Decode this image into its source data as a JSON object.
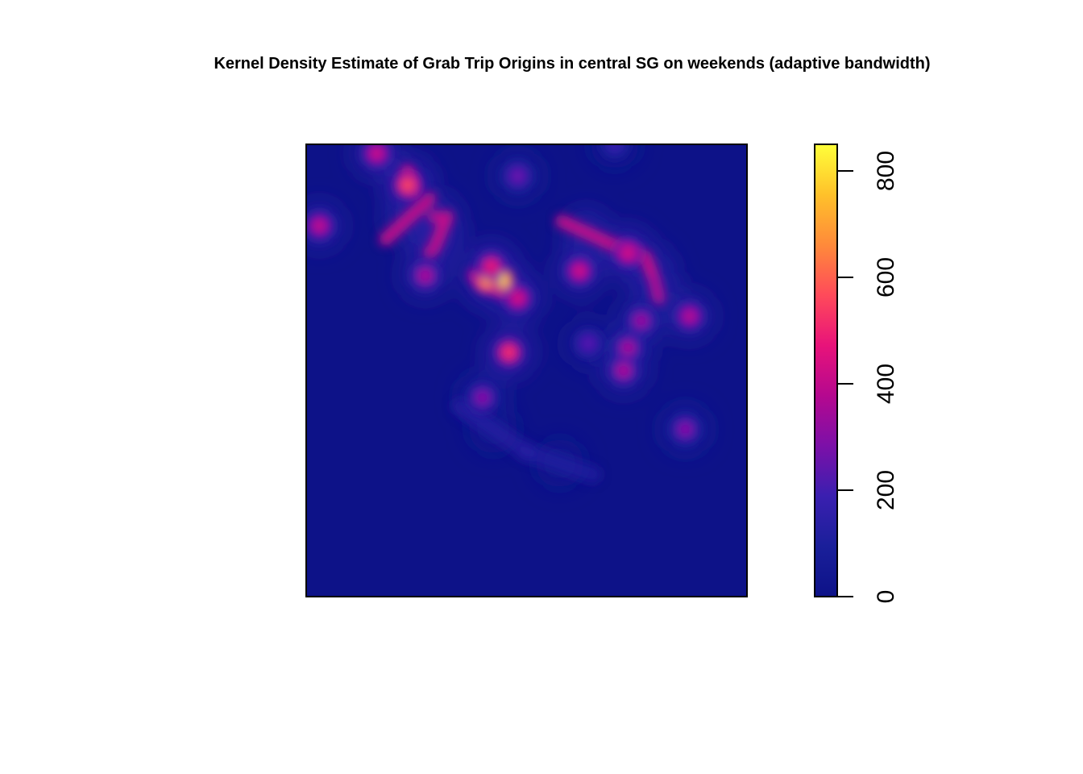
{
  "chart_data": {
    "type": "heatmap",
    "title": "Kernel Density Estimate of Grab Trip Origins in central SG on weekends (adaptive bandwidth)",
    "xlabel": "",
    "ylabel": "",
    "axes": "none",
    "grid": false,
    "colorbar": {
      "position": "right",
      "orientation": "vertical",
      "range": [
        0,
        850
      ],
      "ticks": [
        "0",
        "200",
        "400",
        "600",
        "800"
      ],
      "tick_values": [
        0,
        200,
        400,
        600,
        800
      ],
      "colors": [
        "#0d1288",
        "#1a1f9a",
        "#3a1fb0",
        "#7c10a8",
        "#b5088f",
        "#e8137a",
        "#ff4a5a",
        "#ff8a3a",
        "#ffc12a",
        "#ffff3a"
      ]
    },
    "hotspots": [
      {
        "x": 0.44,
        "y": 0.3,
        "value": 850
      },
      {
        "x": 0.41,
        "y": 0.3,
        "value": 700
      },
      {
        "x": 0.42,
        "y": 0.27,
        "value": 480
      },
      {
        "x": 0.48,
        "y": 0.34,
        "value": 440
      },
      {
        "x": 0.46,
        "y": 0.46,
        "value": 520
      },
      {
        "x": 0.23,
        "y": 0.09,
        "value": 560
      },
      {
        "x": 0.16,
        "y": 0.02,
        "value": 420
      },
      {
        "x": 0.03,
        "y": 0.18,
        "value": 400
      },
      {
        "x": 0.27,
        "y": 0.29,
        "value": 360
      },
      {
        "x": 0.62,
        "y": 0.28,
        "value": 430
      },
      {
        "x": 0.73,
        "y": 0.24,
        "value": 440
      },
      {
        "x": 0.87,
        "y": 0.38,
        "value": 380
      },
      {
        "x": 0.76,
        "y": 0.39,
        "value": 330
      },
      {
        "x": 0.73,
        "y": 0.45,
        "value": 350
      },
      {
        "x": 0.72,
        "y": 0.5,
        "value": 360
      },
      {
        "x": 0.4,
        "y": 0.56,
        "value": 300
      },
      {
        "x": 0.86,
        "y": 0.63,
        "value": 300
      },
      {
        "x": 0.64,
        "y": 0.44,
        "value": 230
      },
      {
        "x": 0.48,
        "y": 0.07,
        "value": 260
      },
      {
        "x": 0.7,
        "y": 0.0,
        "value": 180
      }
    ],
    "ridges": [
      {
        "from": [
          0.28,
          0.12
        ],
        "to": [
          0.18,
          0.21
        ],
        "value": 400
      },
      {
        "from": [
          0.3,
          0.16
        ],
        "to": [
          0.29,
          0.16
        ],
        "value": 380
      },
      {
        "from": [
          0.23,
          0.06
        ],
        "to": [
          0.24,
          0.1
        ],
        "value": 430
      },
      {
        "from": [
          0.32,
          0.16
        ],
        "to": [
          0.29,
          0.23
        ],
        "value": 400
      },
      {
        "from": [
          0.29,
          0.23
        ],
        "to": [
          0.28,
          0.24
        ],
        "value": 380
      },
      {
        "from": [
          0.58,
          0.17
        ],
        "to": [
          0.69,
          0.22
        ],
        "value": 400
      },
      {
        "from": [
          0.69,
          0.22
        ],
        "to": [
          0.77,
          0.25
        ],
        "value": 410
      },
      {
        "from": [
          0.77,
          0.25
        ],
        "to": [
          0.79,
          0.3
        ],
        "value": 400
      },
      {
        "from": [
          0.79,
          0.3
        ],
        "to": [
          0.8,
          0.34
        ],
        "value": 360
      },
      {
        "from": [
          0.38,
          0.29
        ],
        "to": [
          0.45,
          0.33
        ],
        "value": 350
      },
      {
        "from": [
          0.35,
          0.58
        ],
        "to": [
          0.5,
          0.68
        ],
        "value": 150
      },
      {
        "from": [
          0.5,
          0.68
        ],
        "to": [
          0.65,
          0.73
        ],
        "value": 140
      }
    ]
  }
}
